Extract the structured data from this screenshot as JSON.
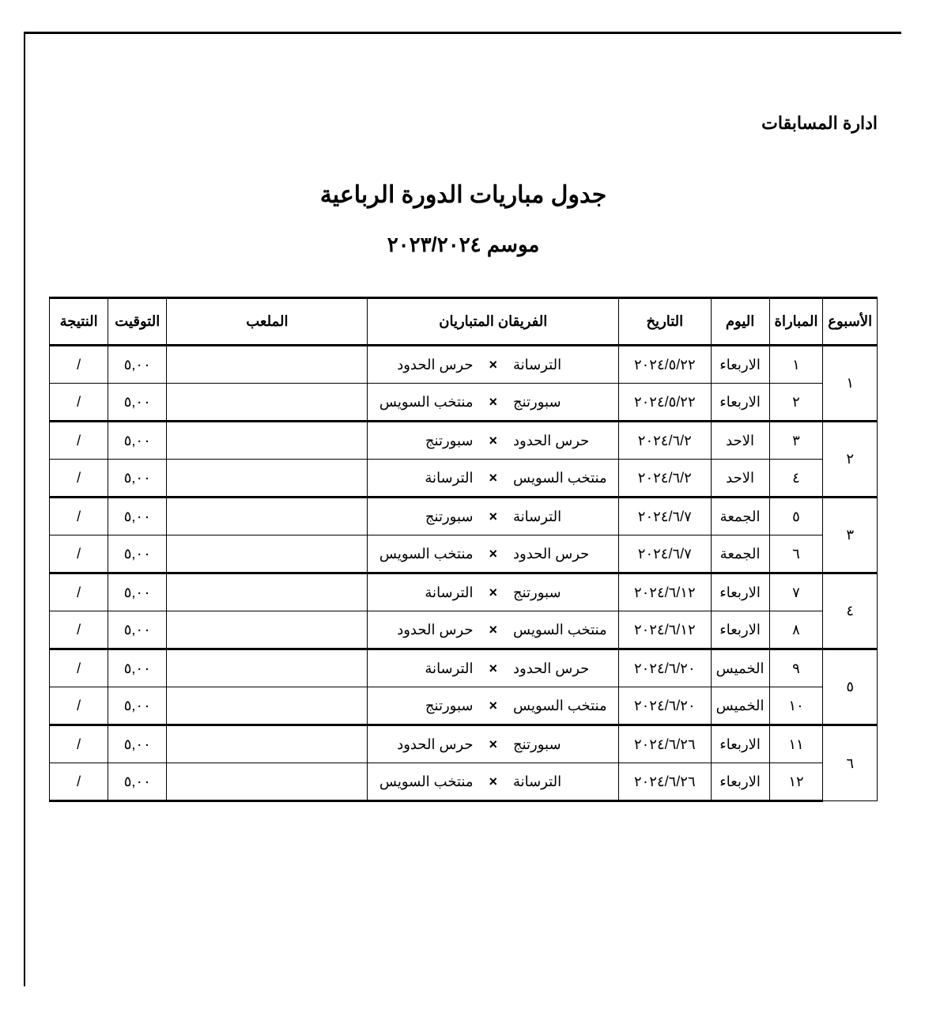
{
  "dept": "ادارة المسابقات",
  "title": "جدول مباريات الدورة الرباعية",
  "season": "موسم ٢٠٢٣/٢٠٢٤",
  "columns": {
    "week": "الأسبوع",
    "match": "المباراة",
    "day": "اليوم",
    "date": "التاريخ",
    "teams": "الفريقان المتباريان",
    "stadium": "الملعب",
    "time": "التوقيت",
    "result": "النتيجة"
  },
  "vs_symbol": "×",
  "weeks": [
    {
      "num": "١",
      "rows": [
        {
          "match": "١",
          "day": "الاربعاء",
          "date": "٢٠٢٤/٥/٢٢",
          "teamA": "الترسانة",
          "teamB": "حرس الحدود",
          "stadium": "",
          "time": "٥,٠٠",
          "result": "/"
        },
        {
          "match": "٢",
          "day": "الاربعاء",
          "date": "٢٠٢٤/٥/٢٢",
          "teamA": "سبورتنج",
          "teamB": "منتخب السويس",
          "stadium": "",
          "time": "٥,٠٠",
          "result": "/"
        }
      ]
    },
    {
      "num": "٢",
      "rows": [
        {
          "match": "٣",
          "day": "الاحد",
          "date": "٢٠٢٤/٦/٢",
          "teamA": "حرس الحدود",
          "teamB": "سبورتنج",
          "stadium": "",
          "time": "٥,٠٠",
          "result": "/"
        },
        {
          "match": "٤",
          "day": "الاحد",
          "date": "٢٠٢٤/٦/٢",
          "teamA": "منتخب السويس",
          "teamB": "الترسانة",
          "stadium": "",
          "time": "٥,٠٠",
          "result": "/"
        }
      ]
    },
    {
      "num": "٣",
      "rows": [
        {
          "match": "٥",
          "day": "الجمعة",
          "date": "٢٠٢٤/٦/٧",
          "teamA": "الترسانة",
          "teamB": "سبورتنج",
          "stadium": "",
          "time": "٥,٠٠",
          "result": "/"
        },
        {
          "match": "٦",
          "day": "الجمعة",
          "date": "٢٠٢٤/٦/٧",
          "teamA": "حرس الحدود",
          "teamB": "منتخب السويس",
          "stadium": "",
          "time": "٥,٠٠",
          "result": "/"
        }
      ]
    },
    {
      "num": "٤",
      "rows": [
        {
          "match": "٧",
          "day": "الاربعاء",
          "date": "٢٠٢٤/٦/١٢",
          "teamA": "سبورتنج",
          "teamB": "الترسانة",
          "stadium": "",
          "time": "٥,٠٠",
          "result": "/"
        },
        {
          "match": "٨",
          "day": "الاربعاء",
          "date": "٢٠٢٤/٦/١٢",
          "teamA": "منتخب السويس",
          "teamB": "حرس الحدود",
          "stadium": "",
          "time": "٥,٠٠",
          "result": "/"
        }
      ]
    },
    {
      "num": "٥",
      "rows": [
        {
          "match": "٩",
          "day": "الخميس",
          "date": "٢٠٢٤/٦/٢٠",
          "teamA": "حرس الحدود",
          "teamB": "الترسانة",
          "stadium": "",
          "time": "٥,٠٠",
          "result": "/"
        },
        {
          "match": "١٠",
          "day": "الخميس",
          "date": "٢٠٢٤/٦/٢٠",
          "teamA": "منتخب السويس",
          "teamB": "سبورتنج",
          "stadium": "",
          "time": "٥,٠٠",
          "result": "/"
        }
      ]
    },
    {
      "num": "٦",
      "rows": [
        {
          "match": "١١",
          "day": "الاربعاء",
          "date": "٢٠٢٤/٦/٢٦",
          "teamA": "سبورتنج",
          "teamB": "حرس الحدود",
          "stadium": "",
          "time": "٥,٠٠",
          "result": "/"
        },
        {
          "match": "١٢",
          "day": "الاربعاء",
          "date": "٢٠٢٤/٦/٢٦",
          "teamA": "الترسانة",
          "teamB": "منتخب السويس",
          "stadium": "",
          "time": "٥,٠٠",
          "result": "/"
        }
      ]
    }
  ]
}
